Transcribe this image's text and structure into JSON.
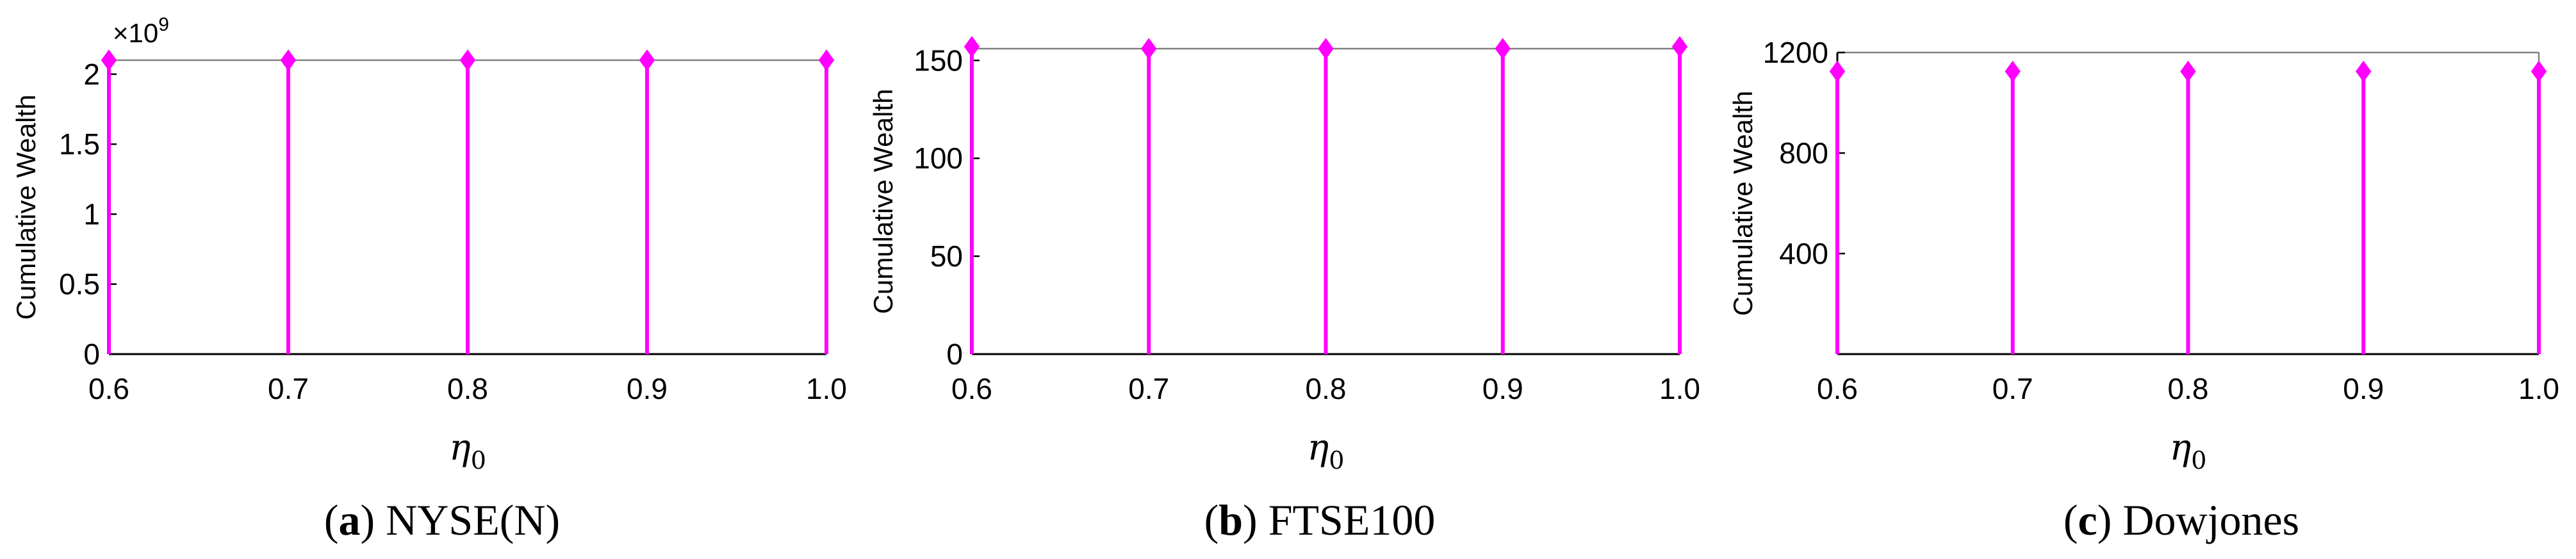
{
  "colors": {
    "series": "#ff00ff",
    "axes": "#000000",
    "frame": "#808080"
  },
  "chart_data": [
    {
      "type": "stem",
      "caption_letter": "a",
      "caption_text": "NYSE(N)",
      "ylabel": "Cumulative Wealth",
      "xlabel_symbol": "η",
      "xlabel_subscript": "0",
      "y_multiplier_base": "×10",
      "y_multiplier_exponent": "9",
      "x": [
        0.6,
        0.7,
        0.8,
        0.9,
        1.0
      ],
      "x_tick_labels": [
        "0.6",
        "0.7",
        "0.8",
        "0.9",
        "1.0"
      ],
      "values": [
        2.1,
        2.1,
        2.1,
        2.1,
        2.1
      ],
      "y_ticks": [
        0,
        0.5,
        1,
        1.5,
        2
      ],
      "y_tick_labels": [
        "0",
        "0.5",
        "1",
        "1.5",
        "2"
      ],
      "xlim": [
        0.6,
        1.0
      ],
      "ylim": [
        0,
        2.1
      ],
      "grid": false
    },
    {
      "type": "stem",
      "caption_letter": "b",
      "caption_text": "FTSE100",
      "ylabel": "Cumulative Wealth",
      "xlabel_symbol": "η",
      "xlabel_subscript": "0",
      "x": [
        0.6,
        0.7,
        0.8,
        0.9,
        1.0
      ],
      "x_tick_labels": [
        "0.6",
        "0.7",
        "0.8",
        "0.9",
        "1.0"
      ],
      "values": [
        157,
        156,
        156,
        156,
        157
      ],
      "y_ticks": [
        0,
        50,
        100,
        150
      ],
      "y_tick_labels": [
        "0",
        "50",
        "100",
        "150"
      ],
      "xlim": [
        0.6,
        1.0
      ],
      "ylim": [
        0,
        156
      ],
      "grid": false
    },
    {
      "type": "stem",
      "caption_letter": "c",
      "caption_text": "Dowjones",
      "ylabel": "Cumulative Wealth",
      "xlabel_symbol": "η",
      "xlabel_subscript": "0",
      "x": [
        0.6,
        0.7,
        0.8,
        0.9,
        1.0
      ],
      "x_tick_labels": [
        "0.6",
        "0.7",
        "0.8",
        "0.9",
        "1.0"
      ],
      "values": [
        1125,
        1125,
        1125,
        1125,
        1125
      ],
      "y_ticks": [
        400,
        800,
        1200
      ],
      "y_tick_labels": [
        "400",
        "800",
        "1200"
      ],
      "xlim": [
        0.6,
        1.0
      ],
      "ylim": [
        0,
        1200
      ],
      "grid": false
    }
  ]
}
